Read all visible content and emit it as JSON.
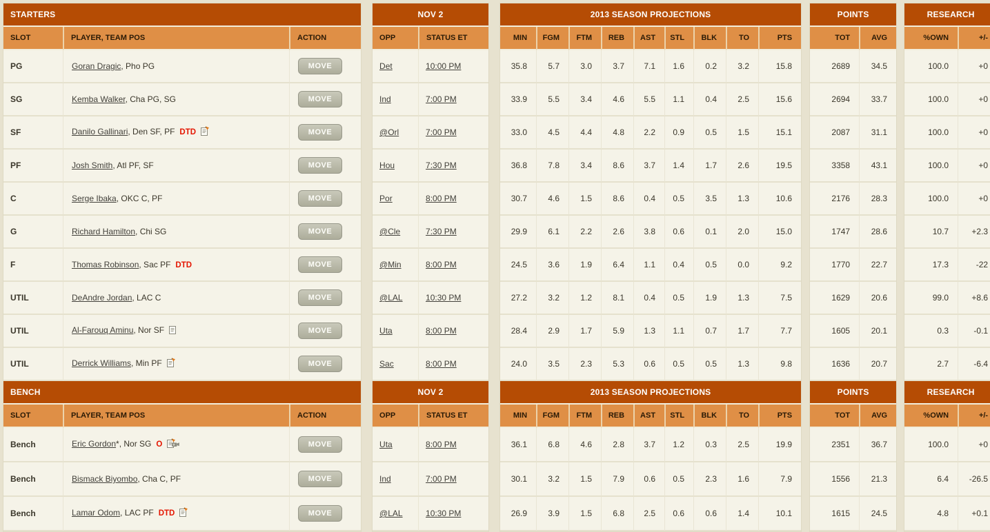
{
  "colors": {
    "section_header_bg": "#b54c04",
    "section_header_text": "#ffffff",
    "column_header_bg": "#df8f46",
    "column_header_text": "#2a1a06",
    "row_bg": "#f5f3e8",
    "page_bg": "#e7e2cf",
    "injury_red": "#e41500",
    "positive_green": "#2f8f2f",
    "negative_red": "#f23434",
    "move_button_bg": "#b3b3a2"
  },
  "sections": {
    "starters": {
      "title": "STARTERS"
    },
    "bench": {
      "title": "BENCH"
    }
  },
  "blocks": {
    "roster": {
      "cols": {
        "slot": "SLOT",
        "player": "PLAYER, TEAM POS",
        "action": "ACTION"
      }
    },
    "game": {
      "title": "NOV 2",
      "cols": {
        "opp": "OPP",
        "status": "STATUS ET"
      }
    },
    "projections": {
      "title": "2013 SEASON PROJECTIONS",
      "cols": [
        "MIN",
        "FGM",
        "FTM",
        "REB",
        "AST",
        "STL",
        "BLK",
        "TO",
        "PTS"
      ]
    },
    "points": {
      "title": "POINTS",
      "cols": {
        "tot": "TOT",
        "avg": "AVG"
      }
    },
    "research": {
      "title": "RESEARCH",
      "cols": {
        "own": "%OWN",
        "delta": "+/-"
      }
    }
  },
  "move_label": "MOVE",
  "icons": {
    "note": "note-icon",
    "note-pencil": "note-pencil-icon",
    "note-pencil-video": "note-pencil-video-icon"
  },
  "starters": [
    {
      "slot": "PG",
      "name": "Goran Dragic",
      "suffix": "",
      "team": "Pho PG",
      "status": "",
      "icon": "",
      "opp": "Det",
      "time": "10:00 PM",
      "stats": [
        "35.8",
        "5.7",
        "3.0",
        "3.7",
        "7.1",
        "1.6",
        "0.2",
        "3.2",
        "15.8"
      ],
      "tot": "2689",
      "avg": "34.5",
      "own": "100.0",
      "delta": "+0",
      "tone": "neutral"
    },
    {
      "slot": "SG",
      "name": "Kemba Walker",
      "suffix": "",
      "team": "Cha PG, SG",
      "status": "",
      "icon": "",
      "opp": "Ind",
      "time": "7:00 PM",
      "stats": [
        "33.9",
        "5.5",
        "3.4",
        "4.6",
        "5.5",
        "1.1",
        "0.4",
        "2.5",
        "15.6"
      ],
      "tot": "2694",
      "avg": "33.7",
      "own": "100.0",
      "delta": "+0",
      "tone": "neutral"
    },
    {
      "slot": "SF",
      "name": "Danilo Gallinari",
      "suffix": "",
      "team": "Den SF, PF",
      "status": "DTD",
      "icon": "note-pencil",
      "opp": "@Orl",
      "time": "7:00 PM",
      "stats": [
        "33.0",
        "4.5",
        "4.4",
        "4.8",
        "2.2",
        "0.9",
        "0.5",
        "1.5",
        "15.1"
      ],
      "tot": "2087",
      "avg": "31.1",
      "own": "100.0",
      "delta": "+0",
      "tone": "neutral"
    },
    {
      "slot": "PF",
      "name": "Josh Smith",
      "suffix": "",
      "team": "Atl PF, SF",
      "status": "",
      "icon": "",
      "opp": "Hou",
      "time": "7:30 PM",
      "stats": [
        "36.8",
        "7.8",
        "3.4",
        "8.6",
        "3.7",
        "1.4",
        "1.7",
        "2.6",
        "19.5"
      ],
      "tot": "3358",
      "avg": "43.1",
      "own": "100.0",
      "delta": "+0",
      "tone": "neutral"
    },
    {
      "slot": "C",
      "name": "Serge Ibaka",
      "suffix": "",
      "team": "OKC C, PF",
      "status": "",
      "icon": "",
      "opp": "Por",
      "time": "8:00 PM",
      "stats": [
        "30.7",
        "4.6",
        "1.5",
        "8.6",
        "0.4",
        "0.5",
        "3.5",
        "1.3",
        "10.6"
      ],
      "tot": "2176",
      "avg": "28.3",
      "own": "100.0",
      "delta": "+0",
      "tone": "neutral"
    },
    {
      "slot": "G",
      "name": "Richard Hamilton",
      "suffix": "",
      "team": "Chi SG",
      "status": "",
      "icon": "",
      "opp": "@Cle",
      "time": "7:30 PM",
      "stats": [
        "29.9",
        "6.1",
        "2.2",
        "2.6",
        "3.8",
        "0.6",
        "0.1",
        "2.0",
        "15.0"
      ],
      "tot": "1747",
      "avg": "28.6",
      "own": "10.7",
      "delta": "+2.3",
      "tone": "pos"
    },
    {
      "slot": "F",
      "name": "Thomas Robinson",
      "suffix": "",
      "team": "Sac PF",
      "status": "DTD",
      "icon": "",
      "opp": "@Min",
      "time": "8:00 PM",
      "stats": [
        "24.5",
        "3.6",
        "1.9",
        "6.4",
        "1.1",
        "0.4",
        "0.5",
        "0.0",
        "9.2"
      ],
      "tot": "1770",
      "avg": "22.7",
      "own": "17.3",
      "delta": "-22",
      "tone": "neg"
    },
    {
      "slot": "UTIL",
      "name": "DeAndre Jordan",
      "suffix": "",
      "team": "LAC C",
      "status": "",
      "icon": "",
      "opp": "@LAL",
      "time": "10:30 PM",
      "stats": [
        "27.2",
        "3.2",
        "1.2",
        "8.1",
        "0.4",
        "0.5",
        "1.9",
        "1.3",
        "7.5"
      ],
      "tot": "1629",
      "avg": "20.6",
      "own": "99.0",
      "delta": "+8.6",
      "tone": "pos"
    },
    {
      "slot": "UTIL",
      "name": "Al-Farouq Aminu",
      "suffix": "",
      "team": "Nor SF",
      "status": "",
      "icon": "note",
      "opp": "Uta",
      "time": "8:00 PM",
      "stats": [
        "28.4",
        "2.9",
        "1.7",
        "5.9",
        "1.3",
        "1.1",
        "0.7",
        "1.7",
        "7.7"
      ],
      "tot": "1605",
      "avg": "20.1",
      "own": "0.3",
      "delta": "-0.1",
      "tone": "neg"
    },
    {
      "slot": "UTIL",
      "name": "Derrick Williams",
      "suffix": "",
      "team": "Min PF",
      "status": "",
      "icon": "note-pencil",
      "opp": "Sac",
      "time": "8:00 PM",
      "stats": [
        "24.0",
        "3.5",
        "2.3",
        "5.3",
        "0.6",
        "0.5",
        "0.5",
        "1.3",
        "9.8"
      ],
      "tot": "1636",
      "avg": "20.7",
      "own": "2.7",
      "delta": "-6.4",
      "tone": "neg"
    }
  ],
  "bench": [
    {
      "slot": "Bench",
      "name": "Eric Gordon",
      "suffix": "*",
      "team": "Nor SG",
      "status": "O",
      "icon": "note-pencil-video",
      "opp": "Uta",
      "time": "8:00 PM",
      "stats": [
        "36.1",
        "6.8",
        "4.6",
        "2.8",
        "3.7",
        "1.2",
        "0.3",
        "2.5",
        "19.9"
      ],
      "tot": "2351",
      "avg": "36.7",
      "own": "100.0",
      "delta": "+0",
      "tone": "neutral"
    },
    {
      "slot": "Bench",
      "name": "Bismack Biyombo",
      "suffix": "",
      "team": "Cha C, PF",
      "status": "",
      "icon": "",
      "opp": "Ind",
      "time": "7:00 PM",
      "stats": [
        "30.1",
        "3.2",
        "1.5",
        "7.9",
        "0.6",
        "0.5",
        "2.3",
        "1.6",
        "7.9"
      ],
      "tot": "1556",
      "avg": "21.3",
      "own": "6.4",
      "delta": "-26.5",
      "tone": "neg"
    },
    {
      "slot": "Bench",
      "name": "Lamar Odom",
      "suffix": "",
      "team": "LAC PF",
      "status": "DTD",
      "icon": "note-pencil",
      "opp": "@LAL",
      "time": "10:30 PM",
      "stats": [
        "26.9",
        "3.9",
        "1.5",
        "6.8",
        "2.5",
        "0.6",
        "0.6",
        "1.4",
        "10.1"
      ],
      "tot": "1615",
      "avg": "24.5",
      "own": "4.8",
      "delta": "+0.1",
      "tone": "pos"
    }
  ]
}
